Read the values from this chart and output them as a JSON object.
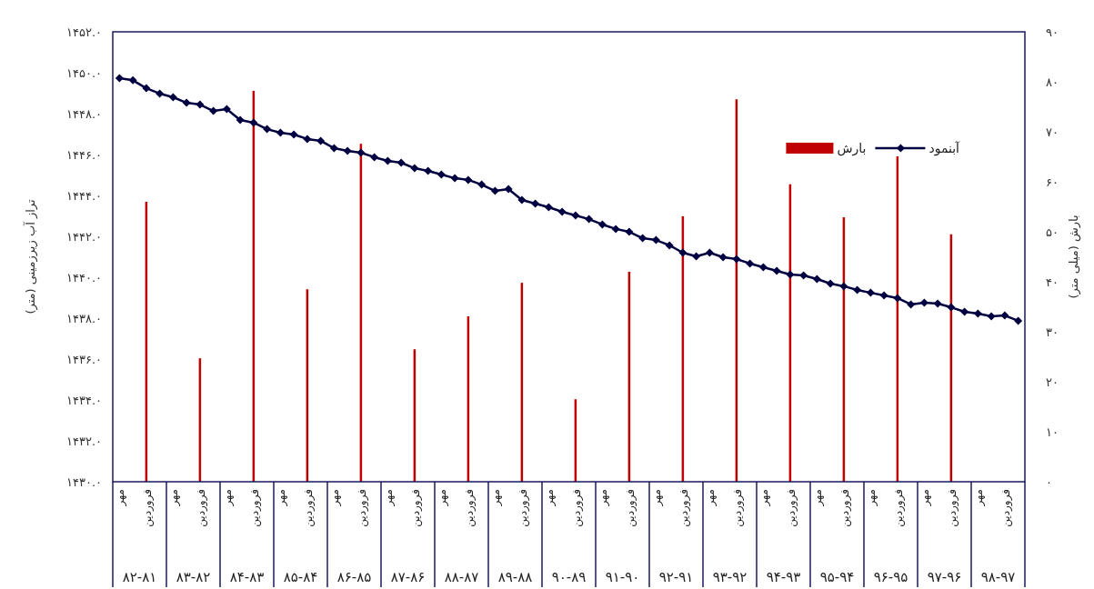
{
  "chart_data": {
    "type": "line",
    "categories": [
      "مهر",
      null,
      "فروردین",
      null,
      "مهر",
      null,
      "فروردین",
      null,
      "مهر",
      null,
      "فروردین",
      null,
      "مهر",
      null,
      "فروردین",
      null,
      "مهر",
      null,
      "فروردین",
      null,
      "مهر",
      null,
      "فروردین",
      null,
      "مهر",
      null,
      "فروردین",
      null,
      "مهر",
      null,
      "فروردین",
      null,
      "مهر",
      null,
      "فروردین",
      null,
      "مهر",
      null,
      "فروردین",
      null,
      "مهر",
      null,
      "فروردین",
      null,
      "مهر",
      null,
      "فروردین",
      null,
      "مهر",
      null,
      "فروردین",
      null,
      "مهر",
      null,
      "فروردین",
      null,
      "مهر",
      null,
      "فروردین",
      null,
      "مهر",
      null,
      "فروردین",
      null,
      "مهر",
      null,
      "فروردین",
      null
    ],
    "series": [
      {
        "name": "آبنمود",
        "color": "#000040",
        "values": [
          1449.73,
          1449.63,
          1449.24,
          1448.98,
          1448.8,
          1448.53,
          1448.44,
          1448.13,
          1448.22,
          1447.69,
          1447.56,
          1447.24,
          1447.07,
          1446.98,
          1446.76,
          1446.67,
          1446.31,
          1446.18,
          1446.09,
          1445.87,
          1445.69,
          1445.6,
          1445.33,
          1445.2,
          1445.02,
          1444.84,
          1444.76,
          1444.53,
          1444.22,
          1444.31,
          1443.78,
          1443.6,
          1443.42,
          1443.2,
          1443.02,
          1442.84,
          1442.58,
          1442.36,
          1442.22,
          1441.91,
          1441.82,
          1441.56,
          1441.2,
          1441.02,
          1441.2,
          1440.98,
          1440.89,
          1440.67,
          1440.49,
          1440.31,
          1440.13,
          1440.09,
          1439.91,
          1439.69,
          1439.56,
          1439.38,
          1439.24,
          1439.11,
          1438.98,
          1438.67,
          1438.76,
          1438.71,
          1438.53,
          1438.31,
          1438.22,
          1438.09,
          1438.13,
          1437.87
        ]
      },
      {
        "name": "بارش",
        "type": "bar",
        "axis": "y2",
        "color": "#c00000",
        "values": [
          null,
          null,
          56.0,
          null,
          null,
          null,
          24.7,
          null,
          null,
          null,
          78.2,
          null,
          null,
          null,
          38.5,
          null,
          null,
          null,
          67.6,
          null,
          null,
          null,
          26.5,
          null,
          null,
          null,
          33.1,
          null,
          null,
          null,
          39.8,
          null,
          null,
          null,
          16.5,
          null,
          null,
          null,
          42.0,
          null,
          null,
          null,
          53.1,
          null,
          null,
          null,
          76.5,
          null,
          null,
          null,
          59.5,
          null,
          null,
          null,
          52.9,
          null,
          null,
          null,
          65.1,
          null,
          null,
          null,
          49.5,
          null,
          null,
          null,
          null,
          null
        ]
      }
    ],
    "ylabel": "تراز آب زیرزمینی (متر)",
    "y2label": "بارش (میلی متر)",
    "ylim": [
      1430,
      1452
    ],
    "yticks": [
      {
        "value": 1430,
        "label": "۱۴۳۰.۰"
      },
      {
        "value": 1432,
        "label": "۱۴۳۲.۰"
      },
      {
        "value": 1434,
        "label": "۱۴۳۴.۰"
      },
      {
        "value": 1436,
        "label": "۱۴۳۶.۰"
      },
      {
        "value": 1438,
        "label": "۱۴۳۸.۰"
      },
      {
        "value": 1440,
        "label": "۱۴۴۰.۰"
      },
      {
        "value": 1442,
        "label": "۱۴۴۲.۰"
      },
      {
        "value": 1444,
        "label": "۱۴۴۴.۰"
      },
      {
        "value": 1446,
        "label": "۱۴۴۶.۰"
      },
      {
        "value": 1448,
        "label": "۱۴۴۸.۰"
      },
      {
        "value": 1450,
        "label": "۱۴۵۰.۰"
      },
      {
        "value": 1452,
        "label": "۱۴۵۲.۰"
      }
    ],
    "y2lim": [
      0,
      90
    ],
    "y2ticks": [
      {
        "value": 0,
        "label": "۰"
      },
      {
        "value": 10,
        "label": "۱۰"
      },
      {
        "value": 20,
        "label": "۲۰"
      },
      {
        "value": 30,
        "label": "۳۰"
      },
      {
        "value": 40,
        "label": "۴۰"
      },
      {
        "value": 50,
        "label": "۵۰"
      },
      {
        "value": 60,
        "label": "۶۰"
      },
      {
        "value": 70,
        "label": "۷۰"
      },
      {
        "value": 80,
        "label": "۸۰"
      },
      {
        "value": 90,
        "label": "۹۰"
      }
    ],
    "annotations": [
      "۸۲-۸۱",
      "۸۳-۸۲",
      "۸۴-۸۳",
      "۸۵-۸۴",
      "۸۶-۸۵",
      "۸۷-۸۶",
      "۸۸-۸۷",
      "۸۹-۸۸",
      "۹۰-۸۹",
      "۹۱-۹۰",
      "۹۲-۹۱",
      "۹۳-۹۲",
      "۹۴-۹۳",
      "۹۵-۹۴",
      "۹۶-۹۵",
      "۹۷-۹۶",
      "۹۸-۹۷"
    ],
    "legend": "top right",
    "marker": "diamond",
    "line_style": "solid"
  }
}
